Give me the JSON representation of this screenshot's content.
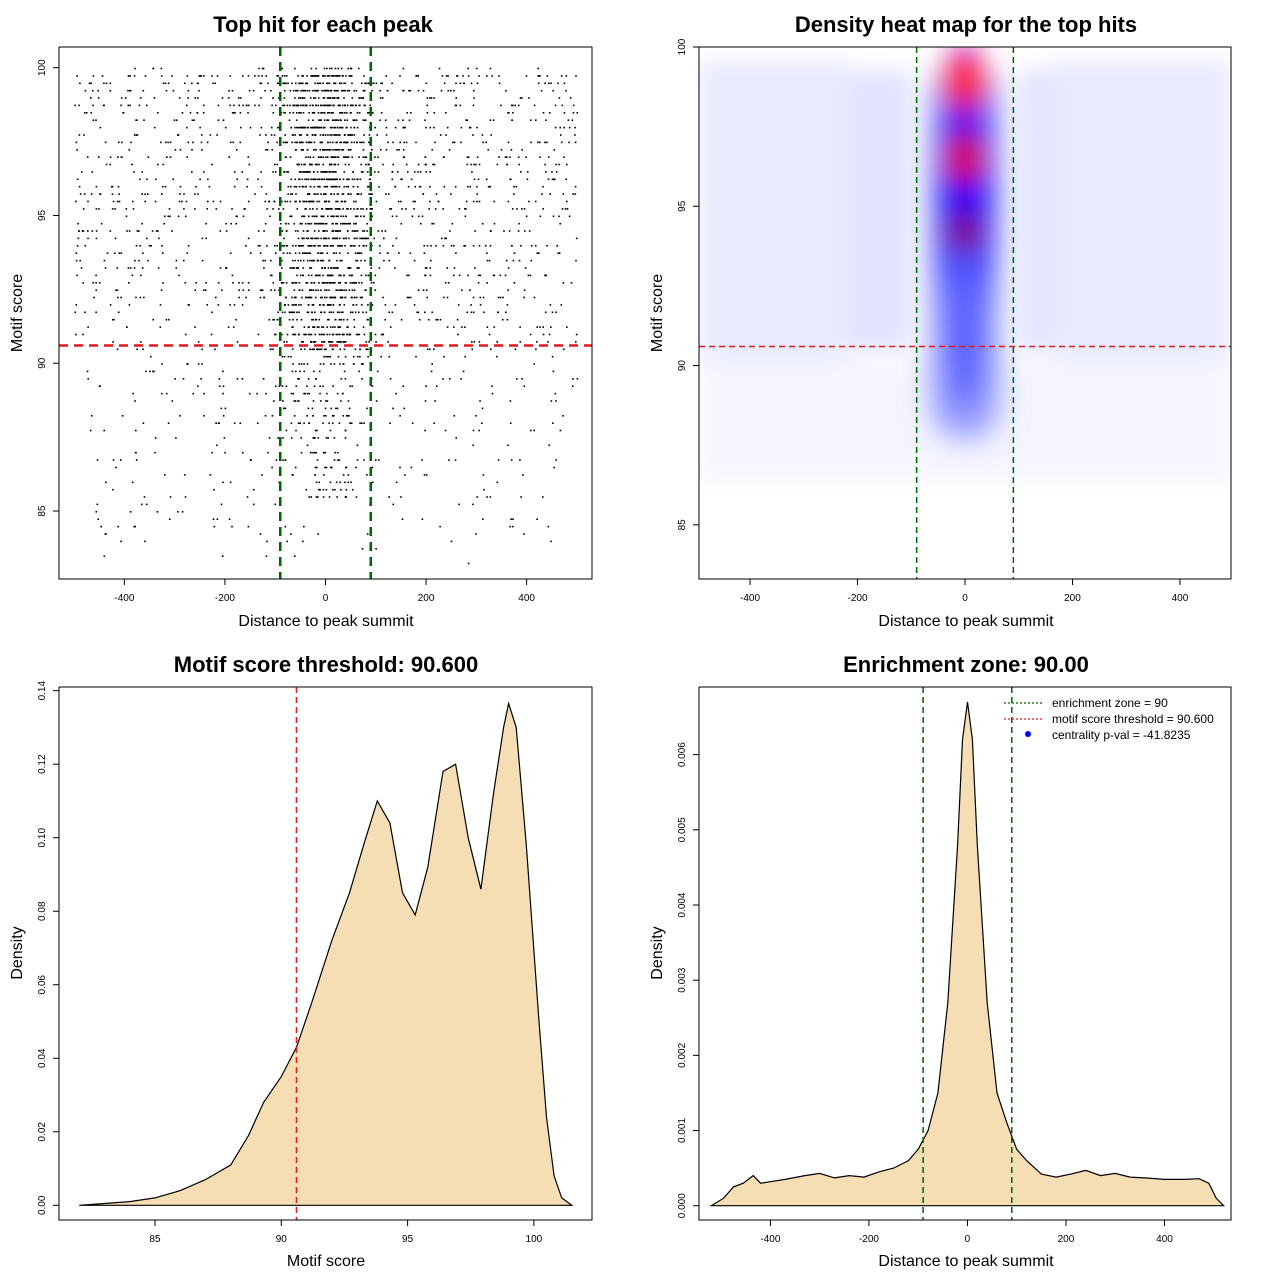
{
  "colors": {
    "threshold_line": "#e41a1c",
    "zone_line": "#006400",
    "density_fill": "#f5deb3",
    "heat_high": "#ff0000",
    "heat_mid": "#0000ff",
    "legend_dot": "#0000ff"
  },
  "chart_data": [
    {
      "id": "scatter",
      "type": "scatter",
      "title": "Top hit for each peak",
      "xlabel": "Distance to peak summit",
      "ylabel": "Motif score",
      "xlim": [
        -530,
        530
      ],
      "ylim": [
        82.7,
        100.7
      ],
      "x_ticks": [
        -400,
        -200,
        0,
        200,
        400
      ],
      "y_ticks": [
        85,
        90,
        95,
        100
      ],
      "threshold": 90.6,
      "zone": [
        -90,
        90
      ],
      "point_summary": "approx. 4000 points; x uniform over -500..500 with strong concentration within ±90 of 0; y concentrated 90–100, sparse down to ~83"
    },
    {
      "id": "heatmap",
      "type": "heatmap",
      "title": "Density heat map for the top hits",
      "xlabel": "Distance to peak summit",
      "ylabel": "Motif score",
      "xlim": [
        -495,
        495
      ],
      "ylim": [
        83.3,
        100
      ],
      "x_ticks": [
        -400,
        -200,
        0,
        200,
        400
      ],
      "y_ticks": [
        85,
        90,
        95,
        100
      ],
      "threshold": 90.6,
      "zone": [
        -90,
        90
      ],
      "hotspots": [
        {
          "x": 0,
          "y": 99,
          "level": "high"
        },
        {
          "x": 0,
          "y": 96.8,
          "level": "high"
        },
        {
          "x": 0,
          "y": 94,
          "level": "medium"
        }
      ]
    },
    {
      "id": "score-density",
      "type": "area",
      "title": "Motif score threshold: 90.600",
      "xlabel": "Motif score",
      "ylabel": "Density",
      "xlim": [
        81.2,
        102.3
      ],
      "ylim": [
        -0.004,
        0.141
      ],
      "x_ticks": [
        85,
        90,
        95,
        100
      ],
      "y_ticks": [
        0.0,
        0.02,
        0.04,
        0.06,
        0.08,
        0.1,
        0.12,
        0.14
      ],
      "y_tick_labels": [
        "0.00",
        "0.02",
        "0.04",
        "0.06",
        "0.08",
        "0.10",
        "0.12",
        "0.14"
      ],
      "threshold": 90.6,
      "x": [
        82.0,
        83.0,
        84.0,
        85.0,
        86.0,
        87.0,
        88.0,
        88.7,
        89.3,
        90.0,
        90.6,
        91.2,
        92.0,
        92.7,
        93.3,
        93.8,
        94.3,
        94.8,
        95.3,
        95.8,
        96.4,
        96.9,
        97.4,
        97.9,
        98.4,
        98.8,
        99.0,
        99.3,
        99.7,
        100.2,
        100.5,
        100.8,
        101.1,
        101.5
      ],
      "y": [
        0.0,
        0.0005,
        0.001,
        0.002,
        0.004,
        0.007,
        0.011,
        0.019,
        0.028,
        0.035,
        0.043,
        0.055,
        0.072,
        0.085,
        0.099,
        0.11,
        0.104,
        0.085,
        0.079,
        0.092,
        0.118,
        0.12,
        0.1,
        0.086,
        0.112,
        0.13,
        0.1365,
        0.13,
        0.098,
        0.05,
        0.024,
        0.008,
        0.002,
        0.0
      ]
    },
    {
      "id": "distance-density",
      "type": "area",
      "title": "Enrichment zone: 90.00",
      "xlabel": "Distance to peak summit",
      "ylabel": "Density",
      "xlim": [
        -545,
        535
      ],
      "ylim": [
        -0.00019,
        0.0069
      ],
      "x_ticks": [
        -400,
        -200,
        0,
        200,
        400
      ],
      "y_ticks": [
        0.0,
        0.001,
        0.002,
        0.003,
        0.004,
        0.005,
        0.006
      ],
      "y_tick_labels": [
        "0.000",
        "0.001",
        "0.002",
        "0.003",
        "0.004",
        "0.005",
        "0.006"
      ],
      "zone": [
        -90,
        90
      ],
      "x": [
        -520,
        -495,
        -475,
        -455,
        -435,
        -420,
        -400,
        -370,
        -330,
        -300,
        -270,
        -240,
        -210,
        -180,
        -150,
        -120,
        -100,
        -80,
        -60,
        -40,
        -20,
        -10,
        0,
        10,
        20,
        40,
        60,
        80,
        100,
        120,
        150,
        180,
        210,
        240,
        270,
        300,
        330,
        360,
        400,
        440,
        470,
        490,
        505,
        520
      ],
      "y": [
        0.0,
        0.0001,
        0.00025,
        0.0003,
        0.0004,
        0.0003,
        0.00032,
        0.00035,
        0.0004,
        0.00043,
        0.00037,
        0.0004,
        0.00038,
        0.00045,
        0.0005,
        0.0006,
        0.00075,
        0.001,
        0.0015,
        0.0027,
        0.0048,
        0.0062,
        0.0067,
        0.0062,
        0.0048,
        0.0027,
        0.0015,
        0.0011,
        0.00075,
        0.0006,
        0.00042,
        0.00038,
        0.00042,
        0.00047,
        0.0004,
        0.00043,
        0.00038,
        0.00037,
        0.00035,
        0.00035,
        0.00036,
        0.0003,
        0.0001,
        0.0
      ],
      "legend": [
        {
          "label": "enrichment zone = 90",
          "style": "dotted-green"
        },
        {
          "label": "motif score threshold = 90.600",
          "style": "dotted-red"
        },
        {
          "label": "centrality p-val = -41.8235",
          "style": "dot-blue"
        }
      ]
    }
  ]
}
